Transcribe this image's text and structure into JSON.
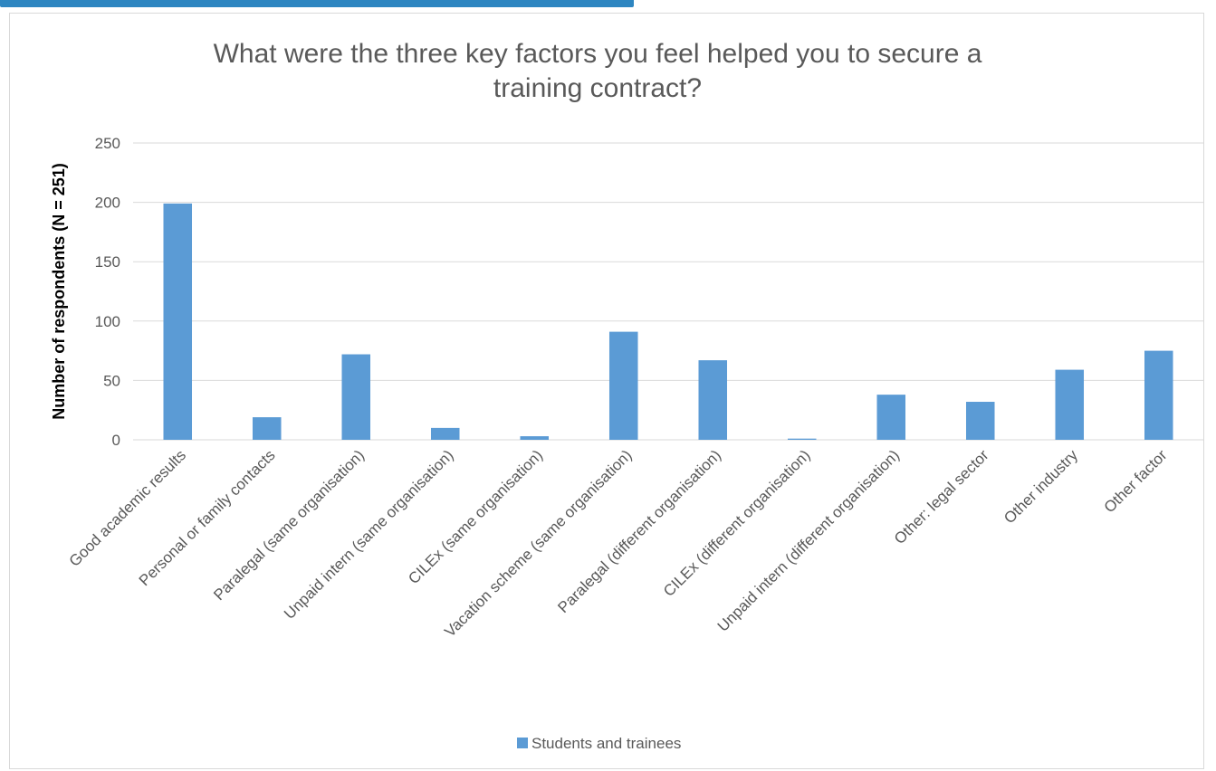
{
  "colors": {
    "bar": "#5b9bd5",
    "grid": "#d9d9d9",
    "text": "#595959",
    "header_accent": "#2e86c1"
  },
  "chart_data": {
    "type": "bar",
    "title": "What were the three key factors you feel helped you to secure a training contract?",
    "title_lines": [
      "What were the three key factors you feel helped you to secure a",
      "training contract?"
    ],
    "xlabel": "",
    "ylabel": "Number of respondents (N = 251)",
    "ylim": [
      0,
      250
    ],
    "yticks": [
      0,
      50,
      100,
      150,
      200,
      250
    ],
    "grid": true,
    "legend_position": "bottom",
    "categories": [
      "Good academic results",
      "Personal or family contacts",
      "Paralegal (same organisation)",
      "Unpaid intern (same organisation)",
      "CILEx (same organisation)",
      "Vacation scheme (same organisation)",
      "Paralegal (different organisation)",
      "CILEx (different organisation)",
      "Unpaid intern (different organisation)",
      "Other: legal sector",
      "Other industry",
      "Other factor"
    ],
    "series": [
      {
        "name": "Students and trainees",
        "values": [
          199,
          19,
          72,
          10,
          3,
          91,
          67,
          1,
          38,
          32,
          59,
          75
        ]
      }
    ]
  }
}
